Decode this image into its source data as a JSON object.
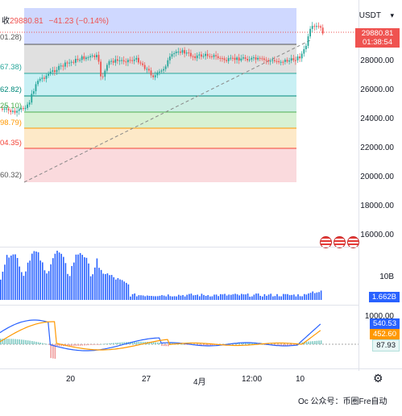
{
  "header": {
    "ohlc_prefix": "收",
    "close": "29880.81",
    "change": "−41.23 (−0.14%)",
    "currency": "USDT"
  },
  "fib_labels": [
    "01.28)",
    "67.38)",
    "62.82)",
    "25.10)",
    "98.79)",
    "04.35)",
    "60.32)"
  ],
  "price_axis": [
    "28000.00",
    "26000.00",
    "24000.00",
    "22000.00",
    "20000.00",
    "18000.00",
    "16000.00"
  ],
  "last_price": {
    "value": "29880.81",
    "countdown": "01:38:54"
  },
  "volume": {
    "axis_label": "10B",
    "current": "1.662B"
  },
  "macd": {
    "axis_label": "1000.00",
    "macd_value": "540.53",
    "signal_value": "452.60",
    "hist_value": "87.93"
  },
  "time_axis": [
    "20",
    "27",
    "4月",
    "12:00",
    "10"
  ],
  "settings_icon": "gear-icon",
  "watermark": "Oc 公众号：币圈Fre自动",
  "colors": {
    "up": "#26a69a",
    "down": "#ef5350",
    "volume": "#2962ff",
    "macd_line": "#2962ff",
    "signal_line": "#ff9800"
  },
  "chart_data": [
    {
      "type": "line",
      "title": "",
      "xlabel": "",
      "ylabel": "USDT",
      "x": [
        "20",
        "27",
        "4月",
        "12:00",
        "10"
      ],
      "series": [
        {
          "values": [
            23500,
            28200,
            27900,
            28100,
            29880
          ]
        }
      ],
      "ylim": [
        15000,
        31000
      ]
    }
  ]
}
